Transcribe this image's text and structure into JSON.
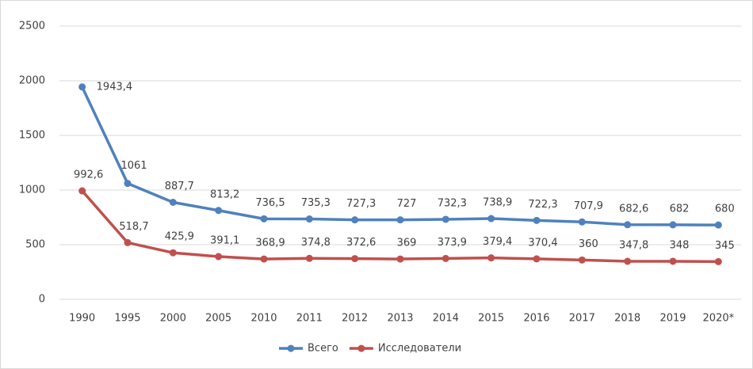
{
  "chart_data": {
    "type": "line",
    "categories": [
      "1990",
      "1995",
      "2000",
      "2005",
      "2010",
      "2011",
      "2012",
      "2013",
      "2014",
      "2015",
      "2016",
      "2017",
      "2018",
      "2019",
      "2020*"
    ],
    "series": [
      {
        "name": "Всего",
        "color": "#4f81bd",
        "values": [
          1943.4,
          1061,
          887.7,
          813.2,
          736.5,
          735.3,
          727.3,
          727,
          732.3,
          738.9,
          722.3,
          707.9,
          682.6,
          682,
          680
        ],
        "value_labels": [
          "1943,4",
          "1061",
          "887,7",
          "813,2",
          "736,5",
          "735,3",
          "727,3",
          "727",
          "732,3",
          "738,9",
          "722,3",
          "707,9",
          "682,6",
          "682",
          "680"
        ]
      },
      {
        "name": "Исследователи",
        "color": "#c0504d",
        "values": [
          992.6,
          518.7,
          425.9,
          391.1,
          368.9,
          374.8,
          372.6,
          369,
          373.9,
          379.4,
          370.4,
          360,
          347.8,
          348,
          345
        ],
        "value_labels": [
          "992,6",
          "518,7",
          "425,9",
          "391,1",
          "368,9",
          "374,8",
          "372,6",
          "369",
          "373,9",
          "379,4",
          "370,4",
          "360",
          "347,8",
          "348",
          "345"
        ]
      }
    ],
    "ylim": [
      0,
      2500
    ],
    "yticks": [
      0,
      500,
      1000,
      1500,
      2000,
      2500
    ],
    "grid": true,
    "legend": "bottom"
  }
}
